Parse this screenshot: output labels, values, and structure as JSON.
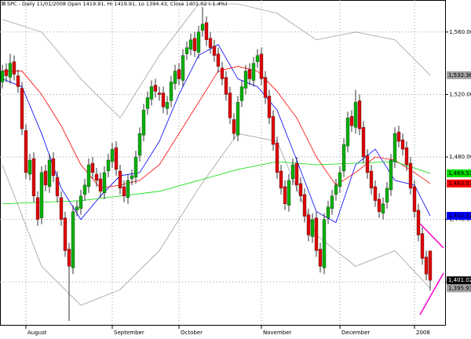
{
  "chart_data": {
    "type": "candlestick",
    "title": "SPC - Daily 11/01/2008 Open 1419.91, Hi 1419.91, Lo 1394.43, Close 1401.02 (-1.4%)",
    "open": [
      1528,
      1536,
      1531,
      1541,
      1532,
      1524,
      1497,
      1469,
      1479,
      1454,
      1441,
      1471,
      1461,
      1479,
      1467,
      1454,
      1441,
      1421,
      1409,
      1446,
      1447,
      1456,
      1461,
      1476,
      1469,
      1466,
      1457,
      1471,
      1477,
      1486,
      1471,
      1461,
      1454,
      1466,
      1467,
      1481,
      1494,
      1511,
      1517,
      1526,
      1521,
      1521,
      1511,
      1516,
      1527,
      1536,
      1529,
      1546,
      1549,
      1556,
      1547,
      1561,
      1566,
      1556,
      1551,
      1546,
      1537,
      1531,
      1521,
      1504,
      1494,
      1516,
      1524,
      1536,
      1529,
      1541,
      1546,
      1531,
      1519,
      1506,
      1489,
      1471,
      1461,
      1449,
      1466,
      1476,
      1463,
      1456,
      1443,
      1429,
      1441,
      1421,
      1409,
      1441,
      1447,
      1456,
      1461,
      1471,
      1487,
      1506,
      1499,
      1516,
      1499,
      1481,
      1471,
      1461,
      1453,
      1444,
      1451,
      1459,
      1477,
      1496,
      1491,
      1486,
      1476,
      1461,
      1446,
      1431,
      1416,
      1419.91
    ],
    "high": [
      1539,
      1540,
      1546,
      1545,
      1536,
      1528,
      1501,
      1482,
      1483,
      1458,
      1474,
      1475,
      1482,
      1483,
      1471,
      1458,
      1445,
      1425,
      1449,
      1452,
      1459,
      1466,
      1479,
      1480,
      1473,
      1470,
      1474,
      1482,
      1489,
      1490,
      1475,
      1465,
      1469,
      1472,
      1484,
      1499,
      1514,
      1522,
      1529,
      1530,
      1525,
      1525,
      1519,
      1532,
      1539,
      1540,
      1549,
      1554,
      1559,
      1560,
      1564,
      1576,
      1570,
      1560,
      1555,
      1550,
      1541,
      1535,
      1525,
      1508,
      1519,
      1529,
      1539,
      1540,
      1544,
      1549,
      1550,
      1535,
      1523,
      1510,
      1493,
      1475,
      1465,
      1469,
      1479,
      1480,
      1467,
      1460,
      1447,
      1444,
      1445,
      1425,
      1444,
      1452,
      1459,
      1466,
      1474,
      1492,
      1509,
      1510,
      1523,
      1520,
      1503,
      1485,
      1475,
      1465,
      1457,
      1454,
      1464,
      1482,
      1499,
      1500,
      1495,
      1490,
      1480,
      1465,
      1450,
      1435,
      1420,
      1419.91
    ],
    "low": [
      1524,
      1528,
      1527,
      1529,
      1521,
      1494,
      1466,
      1465,
      1451,
      1436,
      1437,
      1458,
      1457,
      1464,
      1451,
      1436,
      1416,
      1375,
      1405,
      1442,
      1443,
      1452,
      1457,
      1466,
      1461,
      1454,
      1453,
      1467,
      1473,
      1468,
      1456,
      1451,
      1450,
      1462,
      1463,
      1477,
      1490,
      1507,
      1513,
      1518,
      1516,
      1508,
      1507,
      1512,
      1523,
      1526,
      1525,
      1542,
      1545,
      1544,
      1543,
      1557,
      1551,
      1546,
      1541,
      1534,
      1526,
      1516,
      1501,
      1491,
      1490,
      1512,
      1520,
      1526,
      1525,
      1537,
      1526,
      1514,
      1501,
      1484,
      1466,
      1456,
      1446,
      1445,
      1462,
      1458,
      1451,
      1438,
      1426,
      1425,
      1416,
      1406,
      1405,
      1437,
      1443,
      1452,
      1457,
      1467,
      1483,
      1496,
      1495,
      1494,
      1476,
      1466,
      1456,
      1448,
      1441,
      1440,
      1447,
      1455,
      1473,
      1486,
      1481,
      1471,
      1456,
      1441,
      1426,
      1411,
      1401,
      1394.43
    ],
    "close": [
      1535,
      1532,
      1540,
      1533,
      1525,
      1498,
      1470,
      1478,
      1455,
      1440,
      1470,
      1462,
      1478,
      1468,
      1455,
      1440,
      1420,
      1410,
      1445,
      1448,
      1455,
      1462,
      1475,
      1470,
      1465,
      1458,
      1470,
      1478,
      1485,
      1472,
      1460,
      1455,
      1465,
      1468,
      1480,
      1495,
      1510,
      1518,
      1525,
      1522,
      1520,
      1512,
      1515,
      1528,
      1535,
      1530,
      1545,
      1550,
      1555,
      1548,
      1560,
      1565,
      1555,
      1550,
      1545,
      1538,
      1530,
      1520,
      1505,
      1495,
      1515,
      1525,
      1535,
      1530,
      1540,
      1545,
      1530,
      1518,
      1505,
      1488,
      1470,
      1460,
      1450,
      1465,
      1475,
      1462,
      1455,
      1442,
      1430,
      1440,
      1420,
      1410,
      1440,
      1448,
      1455,
      1462,
      1470,
      1488,
      1505,
      1500,
      1515,
      1498,
      1480,
      1470,
      1460,
      1452,
      1445,
      1450,
      1460,
      1478,
      1495,
      1490,
      1485,
      1475,
      1460,
      1445,
      1430,
      1415,
      1405,
      1401.02
    ],
    "last_label": "1,401.02",
    "up_color": "#00b000",
    "down_color": "#e00000",
    "wick_color": "#000000",
    "overlays": [
      {
        "color": "#a0a0a0",
        "x": [
          0,
          10,
          20,
          30,
          40,
          50,
          60,
          70,
          80,
          90,
          100,
          109
        ],
        "values": [
          1568,
          1560,
          1530,
          1505,
          1545,
          1578,
          1578,
          1572,
          1555,
          1560,
          1555,
          1532.36
        ],
        "value_labels": [
          null,
          null,
          null,
          null,
          null,
          null,
          null,
          null,
          null,
          null,
          null,
          "1,532.36"
        ]
      },
      {
        "color": "#a0a0a0",
        "x": [
          0,
          10,
          20,
          30,
          40,
          50,
          60,
          70,
          80,
          90,
          100,
          109
        ],
        "values": [
          1475,
          1410,
          1385,
          1395,
          1420,
          1460,
          1495,
          1490,
          1430,
          1410,
          1420,
          1395.93
        ],
        "value_labels": [
          null,
          null,
          null,
          null,
          null,
          null,
          null,
          null,
          null,
          null,
          null,
          "1,395.93"
        ]
      },
      {
        "color": "#0000ff",
        "x": [
          0,
          5,
          10,
          15,
          20,
          25,
          30,
          35,
          40,
          45,
          50,
          55,
          60,
          65,
          70,
          75,
          80,
          85,
          90,
          95,
          100,
          105,
          109
        ],
        "values": [
          1530,
          1525,
          1495,
          1460,
          1440,
          1455,
          1468,
          1470,
          1490,
          1520,
          1545,
          1552,
          1530,
          1525,
          1510,
          1478,
          1445,
          1438,
          1475,
          1485,
          1465,
          1462,
          1442.32
        ],
        "value_labels": [
          null,
          null,
          null,
          null,
          null,
          null,
          null,
          null,
          null,
          null,
          null,
          null,
          null,
          null,
          null,
          null,
          null,
          null,
          null,
          null,
          null,
          null,
          "1,442.32"
        ]
      },
      {
        "color": "#ff0000",
        "x": [
          0,
          5,
          10,
          15,
          20,
          25,
          30,
          35,
          40,
          45,
          50,
          55,
          60,
          65,
          70,
          75,
          80,
          85,
          90,
          95,
          100,
          105,
          109
        ],
        "values": [
          1535,
          1535,
          1520,
          1500,
          1475,
          1460,
          1462,
          1465,
          1475,
          1495,
          1515,
          1535,
          1538,
          1535,
          1522,
          1505,
          1480,
          1462,
          1470,
          1480,
          1478,
          1470,
          1463.03
        ],
        "value_labels": [
          null,
          null,
          null,
          null,
          null,
          null,
          null,
          null,
          null,
          null,
          null,
          null,
          null,
          null,
          null,
          null,
          null,
          null,
          null,
          null,
          null,
          null,
          "1,463.03"
        ]
      },
      {
        "color": "#00dd00",
        "x": [
          0,
          20,
          40,
          60,
          70,
          80,
          90,
          100,
          109
        ],
        "values": [
          1450,
          1452,
          1458,
          1472,
          1477,
          1475,
          1476,
          1477,
          1469.53
        ],
        "value_labels": [
          null,
          null,
          null,
          null,
          null,
          null,
          null,
          null,
          "1,469.53"
        ]
      }
    ],
    "xlim": [
      -0.6,
      113
    ],
    "xticks": [
      {
        "value": 6,
        "label": "August"
      },
      {
        "value": 28,
        "label": "September"
      },
      {
        "value": 45,
        "label": "October"
      },
      {
        "value": 66,
        "label": "November"
      },
      {
        "value": 86,
        "label": "December"
      },
      {
        "value": 105,
        "label": "2008"
      }
    ],
    "ylim": [
      1372,
      1580.5
    ],
    "yticks": [
      {
        "value": 1400,
        "label": "1,400.00"
      },
      {
        "value": 1440,
        "label": "1,440.00"
      },
      {
        "value": 1480,
        "label": "1,480.00"
      },
      {
        "value": 1520,
        "label": "1,520.00"
      },
      {
        "value": 1560,
        "label": "1,560.00"
      }
    ],
    "grid": true
  }
}
